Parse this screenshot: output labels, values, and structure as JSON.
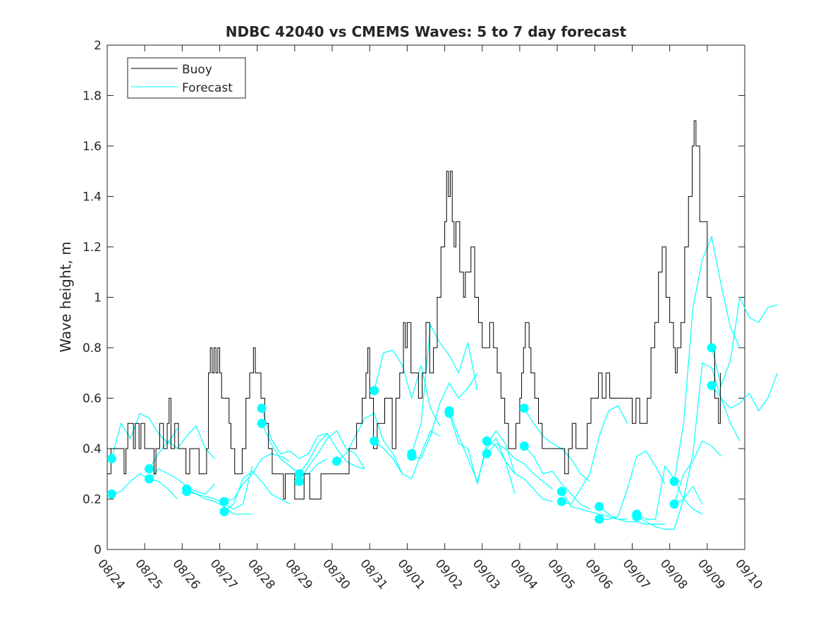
{
  "chart_data": {
    "type": "line",
    "title": "NDBC 42040 vs CMEMS Waves: 5 to 7 day forecast",
    "xlabel": "",
    "ylabel": "Wave height, m",
    "ylim": [
      0,
      2
    ],
    "xlim_days": [
      0,
      17
    ],
    "yticks": [
      "0",
      "0.2",
      "0.4",
      "0.6",
      "0.8",
      "1",
      "1.2",
      "1.4",
      "1.6",
      "1.8",
      "2"
    ],
    "xticks": [
      "08/24",
      "08/25",
      "08/26",
      "08/27",
      "08/28",
      "08/29",
      "08/30",
      "08/31",
      "09/01",
      "09/02",
      "09/03",
      "09/04",
      "09/05",
      "09/06",
      "09/07",
      "09/08",
      "09/09",
      "09/10"
    ],
    "grid": false,
    "legend": {
      "placement": "top-left",
      "entries": [
        "Buoy",
        "Forecast"
      ]
    },
    "colors": {
      "buoy": "#000000",
      "forecast": "#00ffff"
    },
    "buoy": [
      [
        0,
        0.3
      ],
      [
        0.1,
        0.4
      ],
      [
        0.4,
        0.4
      ],
      [
        0.45,
        0.3
      ],
      [
        0.5,
        0.4
      ],
      [
        0.55,
        0.5
      ],
      [
        0.7,
        0.4
      ],
      [
        0.75,
        0.5
      ],
      [
        0.85,
        0.4
      ],
      [
        0.9,
        0.5
      ],
      [
        1.0,
        0.4
      ],
      [
        1.2,
        0.4
      ],
      [
        1.25,
        0.3
      ],
      [
        1.3,
        0.4
      ],
      [
        1.4,
        0.5
      ],
      [
        1.5,
        0.4
      ],
      [
        1.6,
        0.5
      ],
      [
        1.65,
        0.6
      ],
      [
        1.7,
        0.4
      ],
      [
        1.8,
        0.5
      ],
      [
        1.9,
        0.4
      ],
      [
        2.05,
        0.4
      ],
      [
        2.1,
        0.3
      ],
      [
        2.2,
        0.4
      ],
      [
        2.4,
        0.4
      ],
      [
        2.45,
        0.3
      ],
      [
        2.6,
        0.3
      ],
      [
        2.65,
        0.4
      ],
      [
        2.7,
        0.7
      ],
      [
        2.75,
        0.8
      ],
      [
        2.8,
        0.7
      ],
      [
        2.85,
        0.8
      ],
      [
        2.9,
        0.7
      ],
      [
        2.95,
        0.8
      ],
      [
        3.0,
        0.7
      ],
      [
        3.05,
        0.6
      ],
      [
        3.2,
        0.6
      ],
      [
        3.25,
        0.5
      ],
      [
        3.3,
        0.4
      ],
      [
        3.4,
        0.3
      ],
      [
        3.5,
        0.3
      ],
      [
        3.6,
        0.4
      ],
      [
        3.7,
        0.6
      ],
      [
        3.8,
        0.7
      ],
      [
        3.9,
        0.8
      ],
      [
        3.95,
        0.7
      ],
      [
        4.05,
        0.7
      ],
      [
        4.1,
        0.6
      ],
      [
        4.2,
        0.5
      ],
      [
        4.3,
        0.4
      ],
      [
        4.4,
        0.3
      ],
      [
        4.65,
        0.3
      ],
      [
        4.7,
        0.2
      ],
      [
        4.75,
        0.3
      ],
      [
        4.95,
        0.3
      ],
      [
        5.0,
        0.2
      ],
      [
        5.2,
        0.2
      ],
      [
        5.25,
        0.3
      ],
      [
        5.35,
        0.3
      ],
      [
        5.4,
        0.2
      ],
      [
        5.65,
        0.2
      ],
      [
        5.7,
        0.3
      ],
      [
        6.4,
        0.3
      ],
      [
        6.45,
        0.4
      ],
      [
        6.6,
        0.4
      ],
      [
        6.65,
        0.5
      ],
      [
        6.8,
        0.6
      ],
      [
        6.9,
        0.7
      ],
      [
        6.95,
        0.8
      ],
      [
        7.0,
        0.6
      ],
      [
        7.1,
        0.4
      ],
      [
        7.2,
        0.5
      ],
      [
        7.4,
        0.6
      ],
      [
        7.55,
        0.6
      ],
      [
        7.6,
        0.4
      ],
      [
        7.7,
        0.6
      ],
      [
        7.8,
        0.7
      ],
      [
        7.9,
        0.9
      ],
      [
        7.95,
        0.8
      ],
      [
        8.0,
        0.9
      ],
      [
        8.1,
        0.7
      ],
      [
        8.25,
        0.7
      ],
      [
        8.3,
        0.6
      ],
      [
        8.4,
        0.7
      ],
      [
        8.5,
        0.9
      ],
      [
        8.6,
        0.7
      ],
      [
        8.7,
        0.8
      ],
      [
        8.8,
        1.0
      ],
      [
        8.9,
        1.2
      ],
      [
        9.0,
        1.3
      ],
      [
        9.05,
        1.5
      ],
      [
        9.1,
        1.4
      ],
      [
        9.15,
        1.5
      ],
      [
        9.2,
        1.3
      ],
      [
        9.25,
        1.2
      ],
      [
        9.3,
        1.3
      ],
      [
        9.4,
        1.1
      ],
      [
        9.5,
        1.0
      ],
      [
        9.55,
        1.1
      ],
      [
        9.7,
        1.2
      ],
      [
        9.8,
        1.0
      ],
      [
        9.9,
        0.9
      ],
      [
        10.0,
        0.8
      ],
      [
        10.1,
        0.8
      ],
      [
        10.2,
        0.9
      ],
      [
        10.3,
        0.8
      ],
      [
        10.4,
        0.7
      ],
      [
        10.5,
        0.6
      ],
      [
        10.6,
        0.5
      ],
      [
        10.7,
        0.4
      ],
      [
        10.9,
        0.5
      ],
      [
        11.0,
        0.6
      ],
      [
        11.05,
        0.7
      ],
      [
        11.1,
        0.8
      ],
      [
        11.15,
        0.9
      ],
      [
        11.25,
        0.8
      ],
      [
        11.3,
        0.7
      ],
      [
        11.4,
        0.6
      ],
      [
        11.5,
        0.5
      ],
      [
        11.6,
        0.4
      ],
      [
        12.15,
        0.4
      ],
      [
        12.2,
        0.3
      ],
      [
        12.3,
        0.4
      ],
      [
        12.4,
        0.5
      ],
      [
        12.5,
        0.4
      ],
      [
        12.7,
        0.4
      ],
      [
        12.8,
        0.5
      ],
      [
        12.9,
        0.6
      ],
      [
        13.05,
        0.6
      ],
      [
        13.1,
        0.7
      ],
      [
        13.2,
        0.6
      ],
      [
        13.3,
        0.7
      ],
      [
        13.4,
        0.6
      ],
      [
        13.9,
        0.6
      ],
      [
        14.0,
        0.5
      ],
      [
        14.1,
        0.6
      ],
      [
        14.2,
        0.5
      ],
      [
        14.4,
        0.6
      ],
      [
        14.5,
        0.8
      ],
      [
        14.6,
        0.9
      ],
      [
        14.7,
        1.1
      ],
      [
        14.8,
        1.2
      ],
      [
        14.9,
        1.0
      ],
      [
        15.0,
        0.9
      ],
      [
        15.1,
        0.8
      ],
      [
        15.15,
        0.7
      ],
      [
        15.2,
        0.8
      ],
      [
        15.3,
        0.9
      ],
      [
        15.4,
        1.2
      ],
      [
        15.5,
        1.4
      ],
      [
        15.6,
        1.6
      ],
      [
        15.65,
        1.7
      ],
      [
        15.7,
        1.6
      ],
      [
        15.8,
        1.3
      ],
      [
        15.9,
        1.3
      ],
      [
        16.0,
        1.0
      ],
      [
        16.1,
        0.8
      ],
      [
        16.2,
        0.6
      ],
      [
        16.3,
        0.5
      ],
      [
        16.35,
        0.7
      ]
    ],
    "forecast_points": [
      [
        0.12,
        0.36
      ],
      [
        0.12,
        0.22
      ],
      [
        1.12,
        0.32
      ],
      [
        1.12,
        0.28
      ],
      [
        2.12,
        0.24
      ],
      [
        2.12,
        0.23
      ],
      [
        3.12,
        0.19
      ],
      [
        3.12,
        0.15
      ],
      [
        4.12,
        0.56
      ],
      [
        4.12,
        0.5
      ],
      [
        5.12,
        0.3
      ],
      [
        5.12,
        0.27
      ],
      [
        6.12,
        0.35
      ],
      [
        7.12,
        0.63
      ],
      [
        7.12,
        0.43
      ],
      [
        8.12,
        0.38
      ],
      [
        8.12,
        0.37
      ],
      [
        9.12,
        0.55
      ],
      [
        9.12,
        0.54
      ],
      [
        10.12,
        0.43
      ],
      [
        10.12,
        0.38
      ],
      [
        11.12,
        0.56
      ],
      [
        11.12,
        0.41
      ],
      [
        12.12,
        0.23
      ],
      [
        12.12,
        0.19
      ],
      [
        13.12,
        0.17
      ],
      [
        13.12,
        0.12
      ],
      [
        14.12,
        0.14
      ],
      [
        14.12,
        0.13
      ],
      [
        15.12,
        0.27
      ],
      [
        15.12,
        0.18
      ],
      [
        16.12,
        0.8
      ],
      [
        16.12,
        0.65
      ]
    ],
    "forecast_segments": [
      {
        "start": 0.12,
        "step": 0.25,
        "values": [
          0.36,
          0.5,
          0.44,
          0.54,
          0.52,
          0.46,
          0.42,
          0.48
        ]
      },
      {
        "start": 0.12,
        "step": 0.25,
        "values": [
          0.22,
          0.23,
          0.27,
          0.3,
          0.28,
          0.27,
          0.24,
          0.2
        ]
      },
      {
        "start": 1.12,
        "step": 0.25,
        "values": [
          0.32,
          0.38,
          0.43,
          0.4,
          0.45,
          0.49,
          0.4,
          0.36
        ]
      },
      {
        "start": 1.12,
        "step": 0.25,
        "values": [
          0.28,
          0.32,
          0.3,
          0.28,
          0.25,
          0.23,
          0.22,
          0.26
        ]
      },
      {
        "start": 2.12,
        "step": 0.25,
        "values": [
          0.24,
          0.22,
          0.2,
          0.19,
          0.17,
          0.14,
          0.14,
          0.14
        ]
      },
      {
        "start": 2.12,
        "step": 0.25,
        "values": [
          0.23,
          0.22,
          0.21,
          0.2,
          0.18,
          0.16,
          0.18,
          0.33
        ]
      },
      {
        "start": 3.12,
        "step": 0.25,
        "values": [
          0.19,
          0.2,
          0.26,
          0.3,
          0.36,
          0.38,
          0.37,
          0.35
        ]
      },
      {
        "start": 3.12,
        "step": 0.25,
        "values": [
          0.15,
          0.18,
          0.28,
          0.31,
          0.27,
          0.22,
          0.2,
          0.18
        ]
      },
      {
        "start": 4.12,
        "step": 0.25,
        "values": [
          0.56,
          0.44,
          0.38,
          0.39,
          0.36,
          0.38,
          0.45,
          0.46
        ]
      },
      {
        "start": 4.12,
        "step": 0.25,
        "values": [
          0.5,
          0.42,
          0.36,
          0.33,
          0.3,
          0.3,
          0.34,
          0.36
        ]
      },
      {
        "start": 5.12,
        "step": 0.25,
        "values": [
          0.3,
          0.35,
          0.42,
          0.46,
          0.4,
          0.35,
          0.33,
          0.32
        ]
      },
      {
        "start": 5.12,
        "step": 0.25,
        "values": [
          0.27,
          0.33,
          0.38,
          0.44,
          0.47,
          0.4,
          0.38,
          0.32
        ]
      },
      {
        "start": 6.12,
        "step": 0.25,
        "values": [
          0.35,
          0.38,
          0.45,
          0.52,
          0.54,
          0.43,
          0.38,
          0.3
        ]
      },
      {
        "start": 7.12,
        "step": 0.25,
        "values": [
          0.63,
          0.78,
          0.79,
          0.73,
          0.6,
          0.73,
          0.56,
          0.49
        ]
      },
      {
        "start": 7.12,
        "step": 0.25,
        "values": [
          0.43,
          0.4,
          0.36,
          0.3,
          0.28,
          0.38,
          0.47,
          0.45
        ]
      },
      {
        "start": 8.12,
        "step": 0.25,
        "values": [
          0.38,
          0.5,
          0.89,
          0.82,
          0.77,
          0.7,
          0.82,
          0.63
        ]
      },
      {
        "start": 8.12,
        "step": 0.25,
        "values": [
          0.37,
          0.36,
          0.45,
          0.58,
          0.66,
          0.6,
          0.64,
          0.7
        ]
      },
      {
        "start": 9.12,
        "step": 0.25,
        "values": [
          0.55,
          0.45,
          0.36,
          0.27,
          0.4,
          0.44,
          0.35,
          0.22
        ]
      },
      {
        "start": 9.12,
        "step": 0.25,
        "values": [
          0.54,
          0.42,
          0.4,
          0.26,
          0.42,
          0.47,
          0.42,
          0.3
        ]
      },
      {
        "start": 10.12,
        "step": 0.25,
        "values": [
          0.43,
          0.41,
          0.35,
          0.3,
          0.28,
          0.24,
          0.2,
          0.19
        ]
      },
      {
        "start": 10.12,
        "step": 0.25,
        "values": [
          0.38,
          0.42,
          0.4,
          0.36,
          0.34,
          0.3,
          0.27,
          0.24
        ]
      },
      {
        "start": 11.12,
        "step": 0.25,
        "values": [
          0.56,
          0.5,
          0.45,
          0.42,
          0.4,
          0.36,
          0.3,
          0.27
        ]
      },
      {
        "start": 11.12,
        "step": 0.25,
        "values": [
          0.41,
          0.37,
          0.3,
          0.31,
          0.26,
          0.22,
          0.18,
          0.16
        ]
      },
      {
        "start": 12.12,
        "step": 0.25,
        "values": [
          0.23,
          0.17,
          0.16,
          0.15,
          0.14,
          0.13,
          0.12,
          0.12
        ]
      },
      {
        "start": 12.12,
        "step": 0.25,
        "values": [
          0.19,
          0.18,
          0.24,
          0.3,
          0.45,
          0.55,
          0.57,
          0.5
        ]
      },
      {
        "start": 13.12,
        "step": 0.25,
        "values": [
          0.17,
          0.14,
          0.12,
          0.11,
          0.11,
          0.1,
          0.1,
          0.1
        ]
      },
      {
        "start": 13.12,
        "step": 0.25,
        "values": [
          0.12,
          0.12,
          0.13,
          0.24,
          0.37,
          0.39,
          0.33,
          0.26
        ]
      },
      {
        "start": 14.12,
        "step": 0.25,
        "values": [
          0.14,
          0.12,
          0.12,
          0.33,
          0.28,
          0.2,
          0.16,
          0.14
        ]
      },
      {
        "start": 14.12,
        "step": 0.25,
        "values": [
          0.13,
          0.11,
          0.09,
          0.08,
          0.08,
          0.2,
          0.25,
          0.18
        ]
      },
      {
        "start": 15.12,
        "step": 0.25,
        "values": [
          0.27,
          0.5,
          0.96,
          1.15,
          1.24,
          1.05,
          0.88,
          0.8
        ]
      },
      {
        "start": 15.12,
        "step": 0.25,
        "values": [
          0.18,
          0.2,
          0.38,
          0.74,
          0.72,
          0.6,
          0.5,
          0.43
        ]
      },
      {
        "start": 15.12,
        "step": 0.25,
        "values": [
          0.18,
          0.3,
          0.35,
          0.43,
          0.41,
          0.37
        ]
      },
      {
        "start": 16.12,
        "step": 0.25,
        "values": [
          0.8,
          0.65,
          0.75,
          1.0,
          0.92,
          0.9,
          0.96,
          0.97
        ]
      },
      {
        "start": 16.12,
        "step": 0.25,
        "values": [
          0.65,
          0.6,
          0.56,
          0.58,
          0.62,
          0.55,
          0.6,
          0.7
        ]
      }
    ]
  }
}
